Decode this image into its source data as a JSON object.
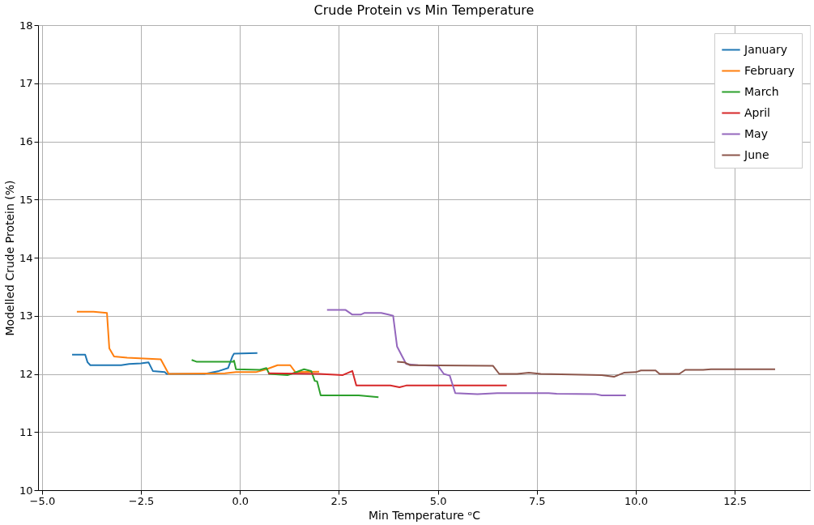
{
  "chart_data": {
    "type": "line",
    "title": "Crude Protein vs Min Temperature",
    "xlabel": "Min Temperature ᵒC",
    "ylabel": "Modelled Crude Protein (%)",
    "xlim": [
      -5.1,
      14.4
    ],
    "ylim": [
      10,
      18
    ],
    "xticks": [
      {
        "value": -5,
        "label": "−5.0"
      },
      {
        "value": -2.5,
        "label": "−2.5"
      },
      {
        "value": 0,
        "label": "0.0"
      },
      {
        "value": 2.5,
        "label": "2.5"
      },
      {
        "value": 5,
        "label": "5.0"
      },
      {
        "value": 7.5,
        "label": "7.5"
      },
      {
        "value": 10,
        "label": "10.0"
      },
      {
        "value": 12.5,
        "label": "12.5"
      }
    ],
    "yticks": [
      10,
      11,
      12,
      13,
      14,
      15,
      16,
      17,
      18
    ],
    "grid": true,
    "legend": "top right",
    "marker": "none",
    "line_style": "solid",
    "series": [
      {
        "name": "January",
        "color": "#1f77b4",
        "x": [
          -4.24,
          -3.91,
          -3.85,
          -3.78,
          -3.0,
          -2.8,
          -2.5,
          -2.31,
          -2.2,
          -1.9,
          -1.85,
          -0.9,
          -0.53,
          -0.3,
          -0.19,
          -0.15,
          0.44
        ],
        "values": [
          12.33,
          12.33,
          12.2,
          12.15,
          12.15,
          12.17,
          12.18,
          12.2,
          12.05,
          12.03,
          12.0,
          12.0,
          12.05,
          12.1,
          12.3,
          12.35,
          12.36
        ]
      },
      {
        "name": "February",
        "color": "#ff7f0e",
        "x": [
          -4.12,
          -3.7,
          -3.36,
          -3.3,
          -3.18,
          -2.85,
          -2.0,
          -1.8,
          -0.38,
          -0.1,
          0.4,
          0.67,
          0.95,
          1.27,
          1.4,
          2.0
        ],
        "values": [
          13.07,
          13.07,
          13.05,
          12.44,
          12.3,
          12.28,
          12.25,
          12.0,
          12.01,
          12.03,
          12.03,
          12.08,
          12.15,
          12.15,
          12.03,
          12.04
        ]
      },
      {
        "name": "March",
        "color": "#2ca02c",
        "x": [
          -1.22,
          -1.1,
          -0.17,
          -0.15,
          -0.1,
          0.5,
          0.67,
          0.74,
          1.2,
          1.3,
          1.62,
          1.8,
          1.89,
          1.95,
          2.04,
          3.0,
          3.5
        ],
        "values": [
          12.24,
          12.21,
          12.21,
          12.23,
          12.08,
          12.07,
          12.1,
          12.0,
          11.98,
          12.0,
          12.08,
          12.05,
          11.88,
          11.87,
          11.63,
          11.63,
          11.6
        ]
      },
      {
        "name": "April",
        "color": "#d62728",
        "x": [
          0.71,
          2.0,
          2.6,
          2.84,
          2.94,
          3.8,
          4.03,
          4.2,
          6.74
        ],
        "values": [
          12.01,
          12.0,
          11.98,
          12.05,
          11.8,
          11.8,
          11.77,
          11.8,
          11.8
        ]
      },
      {
        "name": "May",
        "color": "#9467bd",
        "x": [
          2.2,
          2.67,
          2.84,
          3.05,
          3.15,
          3.57,
          3.75,
          3.87,
          3.97,
          4.1,
          4.2,
          4.5,
          5.0,
          5.15,
          5.3,
          5.44,
          6.0,
          6.5,
          7.8,
          8.0,
          9.0,
          9.14,
          9.75
        ],
        "values": [
          13.1,
          13.1,
          13.02,
          13.02,
          13.05,
          13.05,
          13.02,
          13.0,
          12.47,
          12.3,
          12.17,
          12.15,
          12.14,
          12.0,
          11.97,
          11.67,
          11.65,
          11.67,
          11.67,
          11.66,
          11.65,
          11.63,
          11.63
        ]
      },
      {
        "name": "June",
        "color": "#8c564b",
        "x": [
          3.97,
          4.15,
          4.3,
          6.39,
          6.55,
          7.0,
          7.3,
          7.6,
          9.14,
          9.45,
          9.7,
          10.0,
          10.13,
          10.5,
          10.6,
          11.1,
          11.25,
          11.7,
          11.9,
          13.52
        ],
        "values": [
          12.21,
          12.2,
          12.15,
          12.14,
          12.0,
          12.0,
          12.02,
          12.0,
          11.98,
          11.95,
          12.02,
          12.03,
          12.06,
          12.06,
          12.0,
          12.0,
          12.07,
          12.07,
          12.08,
          12.08
        ]
      }
    ]
  }
}
